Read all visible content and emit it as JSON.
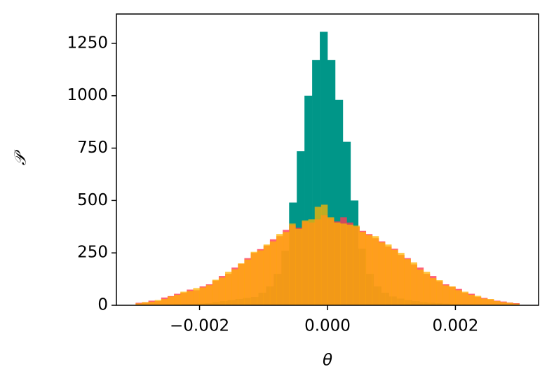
{
  "chart_data": {
    "type": "histogram",
    "x_label": "θ",
    "y_label": "𝒫",
    "xlim": [
      -0.0033,
      0.0033
    ],
    "ylim": [
      0,
      1390
    ],
    "xticks": [
      {
        "value": -0.002,
        "label": "−0.002"
      },
      {
        "value": 0,
        "label": "0.000"
      },
      {
        "value": 0.002,
        "label": "0.002"
      }
    ],
    "yticks": [
      0,
      250,
      500,
      750,
      1000,
      1250
    ],
    "series": [
      {
        "color": "#009688",
        "alpha": 1,
        "bins": [
          -0.003,
          -0.00288,
          -0.00276,
          -0.00264,
          -0.00252,
          -0.0024,
          -0.00228,
          -0.00216,
          -0.00204,
          -0.00192,
          -0.0018,
          -0.00168,
          -0.00156,
          -0.00144,
          -0.00132,
          -0.0012,
          -0.00108,
          -0.00096,
          -0.00084,
          -0.00072,
          -0.0006,
          -0.00048,
          -0.00036,
          -0.00024,
          -0.00012,
          0,
          0.00012,
          0.00024,
          0.00036,
          0.00048,
          0.0006,
          0.00072,
          0.00084,
          0.00096,
          0.00108,
          0.0012,
          0.00132,
          0.00144,
          0.00156,
          0.00168,
          0.0018,
          0.00192,
          0.00204,
          0.00216,
          0.00228,
          0.0024,
          0.00252,
          0.00264,
          0.00276,
          0.00288,
          0.003
        ],
        "values": [
          1,
          1,
          2,
          2,
          3,
          4,
          5,
          6,
          8,
          10,
          15,
          20,
          25,
          30,
          35,
          40,
          60,
          90,
          150,
          260,
          490,
          735,
          1000,
          1170,
          1305,
          1170,
          980,
          780,
          500,
          270,
          150,
          90,
          60,
          42,
          32,
          25,
          20,
          15,
          12,
          10,
          8,
          6,
          5,
          4,
          3,
          3,
          2,
          2,
          1,
          1
        ]
      },
      {
        "color": "#ff3a55",
        "alpha": 0.8,
        "bins": [
          -0.003,
          -0.0029,
          -0.0028,
          -0.0027,
          -0.0026,
          -0.0025,
          -0.0024,
          -0.0023,
          -0.0022,
          -0.0021,
          -0.002,
          -0.0019,
          -0.0018,
          -0.0017,
          -0.0016,
          -0.0015,
          -0.0014,
          -0.0013,
          -0.0012,
          -0.0011,
          -0.001,
          -0.0009,
          -0.0008,
          -0.0007,
          -0.0006,
          -0.0005,
          -0.0004,
          -0.0003,
          -0.0002,
          -0.0001,
          0,
          0.0001,
          0.0002,
          0.0003,
          0.0004,
          0.0005,
          0.0006,
          0.0007,
          0.0008,
          0.0009,
          0.001,
          0.0011,
          0.0012,
          0.0013,
          0.0014,
          0.0015,
          0.0016,
          0.0017,
          0.0018,
          0.0019,
          0.002,
          0.0021,
          0.0022,
          0.0023,
          0.0024,
          0.0025,
          0.0026,
          0.0027,
          0.0028,
          0.0029,
          0.003
        ],
        "values": [
          12,
          14,
          22,
          20,
          37,
          44,
          55,
          60,
          75,
          72,
          90,
          100,
          118,
          140,
          150,
          180,
          198,
          225,
          250,
          268,
          285,
          315,
          330,
          360,
          382,
          370,
          400,
          395,
          410,
          430,
          415,
          400,
          420,
          395,
          375,
          355,
          340,
          320,
          305,
          280,
          270,
          240,
          225,
          195,
          180,
          150,
          140,
          115,
          100,
          88,
          78,
          60,
          55,
          40,
          35,
          28,
          22,
          18,
          13,
          10
        ]
      },
      {
        "color": "#ffb300",
        "alpha": 0.75,
        "bins": [
          -0.003,
          -0.0029,
          -0.0028,
          -0.0027,
          -0.0026,
          -0.0025,
          -0.0024,
          -0.0023,
          -0.0022,
          -0.0021,
          -0.002,
          -0.0019,
          -0.0018,
          -0.0017,
          -0.0016,
          -0.0015,
          -0.0014,
          -0.0013,
          -0.0012,
          -0.0011,
          -0.001,
          -0.0009,
          -0.0008,
          -0.0007,
          -0.0006,
          -0.0005,
          -0.0004,
          -0.0003,
          -0.0002,
          -0.0001,
          0,
          0.0001,
          0.0002,
          0.0003,
          0.0004,
          0.0005,
          0.0006,
          0.0007,
          0.0008,
          0.0009,
          0.001,
          0.0011,
          0.0012,
          0.0013,
          0.0014,
          0.0015,
          0.0016,
          0.0017,
          0.0018,
          0.0019,
          0.002,
          0.0021,
          0.0022,
          0.0023,
          0.0024,
          0.0025,
          0.0026,
          0.0027,
          0.0028,
          0.0029,
          0.003
        ],
        "values": [
          9,
          15,
          17,
          25,
          30,
          42,
          50,
          65,
          68,
          82,
          85,
          96,
          122,
          132,
          160,
          172,
          200,
          218,
          255,
          262,
          290,
          305,
          340,
          350,
          390,
          365,
          405,
          410,
          470,
          480,
          420,
          395,
          390,
          385,
          380,
          350,
          335,
          330,
          300,
          290,
          265,
          250,
          220,
          205,
          170,
          160,
          130,
          120,
          95,
          90,
          72,
          65,
          50,
          45,
          32,
          30,
          20,
          15,
          12,
          8
        ]
      }
    ]
  }
}
